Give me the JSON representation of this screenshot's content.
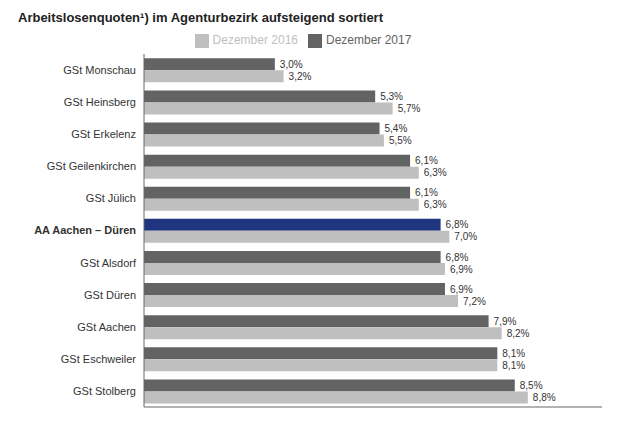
{
  "chart_data": {
    "type": "bar",
    "orientation": "horizontal",
    "title": "Arbeitslosenquoten¹) im Agenturbezirk aufsteigend sortiert",
    "categories": [
      "GSt Monschau",
      "GSt Heinsberg",
      "GSt Erkelenz",
      "GSt Geilenkirchen",
      "GSt Jülich",
      "AA Aachen – Düren",
      "GSt Alsdorf",
      "GSt Düren",
      "GSt Aachen",
      "GSt Eschweiler",
      "GSt Stolberg"
    ],
    "series": [
      {
        "name": "Dezember 2017",
        "color": "#636363",
        "colors": [
          "#636363",
          "#636363",
          "#636363",
          "#636363",
          "#636363",
          "#1f3580",
          "#636363",
          "#636363",
          "#636363",
          "#636363",
          "#636363"
        ],
        "values": [
          3.0,
          5.3,
          5.4,
          6.1,
          6.1,
          6.8,
          6.8,
          6.9,
          7.9,
          8.1,
          8.5
        ],
        "value_labels": [
          "3,0%",
          "5,3%",
          "5,4%",
          "6,1%",
          "6,1%",
          "6,8%",
          "6,8%",
          "6,9%",
          "7,9%",
          "8,1%",
          "8,5%"
        ]
      },
      {
        "name": "Dezember 2016",
        "color": "#bfbfbf",
        "values": [
          3.2,
          5.7,
          5.5,
          6.3,
          6.3,
          7.0,
          6.9,
          7.2,
          8.2,
          8.1,
          8.8
        ],
        "value_labels": [
          "3,2%",
          "5,7%",
          "5,5%",
          "6,3%",
          "6,3%",
          "7,0%",
          "6,9%",
          "7,2%",
          "8,2%",
          "8,1%",
          "8,8%"
        ]
      }
    ],
    "xlim": [
      0,
      10.5
    ],
    "grid": false,
    "legend": "top",
    "data_labels": true,
    "tick_labels": "y"
  }
}
